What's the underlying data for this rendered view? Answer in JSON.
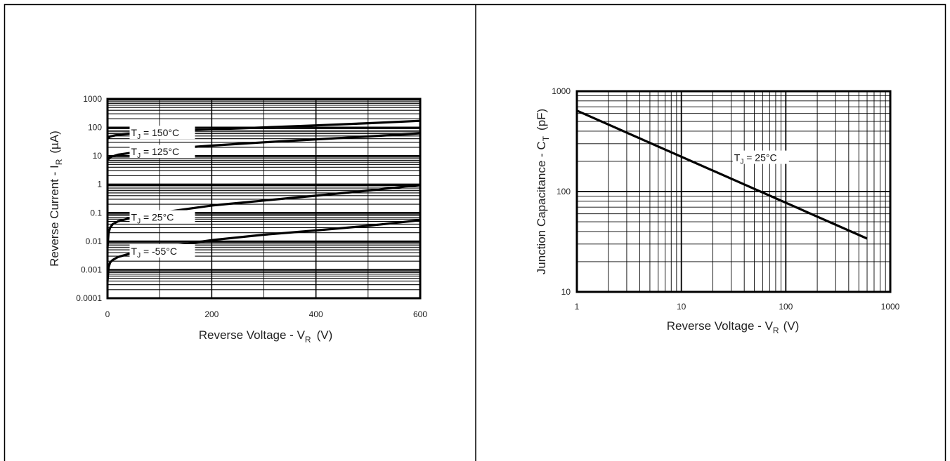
{
  "chart_data": [
    {
      "type": "line",
      "xlabel": "Reverse Voltage - V",
      "xlabel_sub": "R",
      "xlabel_unit": "(V)",
      "ylabel": "Reverse Current - I",
      "ylabel_sub": "R",
      "ylabel_unit": "(µA)",
      "xlim": [
        0,
        600
      ],
      "ylim": [
        0.0001,
        1000
      ],
      "yscale": "log",
      "grid": true,
      "x_ticks": [
        "0",
        "200",
        "400",
        "600"
      ],
      "y_ticks": [
        "0.0001",
        "0.001",
        "0.01",
        "0.1",
        "1",
        "10",
        "100",
        "1000"
      ],
      "series": [
        {
          "name_prefix": "T",
          "name_sub": "J",
          "name_suffix": " = 150°C",
          "x": [
            0,
            5,
            20,
            60,
            100,
            200,
            300,
            400,
            500,
            600
          ],
          "y": [
            40,
            48,
            55,
            65,
            72,
            85,
            100,
            118,
            140,
            170
          ]
        },
        {
          "name_prefix": "T",
          "name_sub": "J",
          "name_suffix": " = 125°C",
          "x": [
            0,
            5,
            20,
            60,
            100,
            200,
            300,
            400,
            500,
            600
          ],
          "y": [
            7,
            9,
            11,
            14,
            17,
            23,
            30,
            38,
            48,
            62
          ]
        },
        {
          "name_prefix": "T",
          "name_sub": "J",
          "name_suffix": " =   25°C",
          "x": [
            0,
            2,
            5,
            10,
            20,
            50,
            100,
            200,
            300,
            400,
            500,
            600
          ],
          "y": [
            0.006,
            0.02,
            0.03,
            0.04,
            0.05,
            0.07,
            0.1,
            0.18,
            0.27,
            0.4,
            0.6,
            0.95
          ]
        },
        {
          "name_prefix": "T",
          "name_sub": "J",
          "name_suffix": " =  -55°C",
          "x": [
            0,
            2,
            5,
            10,
            20,
            50,
            100,
            200,
            300,
            400,
            500,
            600
          ],
          "y": [
            0.0004,
            0.0012,
            0.0018,
            0.0022,
            0.0028,
            0.004,
            0.006,
            0.011,
            0.017,
            0.024,
            0.035,
            0.055
          ]
        }
      ]
    },
    {
      "type": "line",
      "xlabel": "Reverse Voltage - V",
      "xlabel_sub": "R",
      "xlabel_unit": "(V)",
      "ylabel": "Junction Capacitance - C",
      "ylabel_sub": "T",
      "ylabel_unit": "(pF)",
      "xlim": [
        1,
        1000
      ],
      "ylim": [
        10,
        1000
      ],
      "xscale": "log",
      "yscale": "log",
      "grid": true,
      "x_ticks": [
        "1",
        "10",
        "100",
        "1000"
      ],
      "y_ticks": [
        "10",
        "100",
        "1000"
      ],
      "series": [
        {
          "name_prefix": "T",
          "name_sub": "J",
          "name_suffix": " = 25°C",
          "x": [
            1,
            600
          ],
          "y": [
            640,
            34
          ]
        }
      ]
    }
  ]
}
